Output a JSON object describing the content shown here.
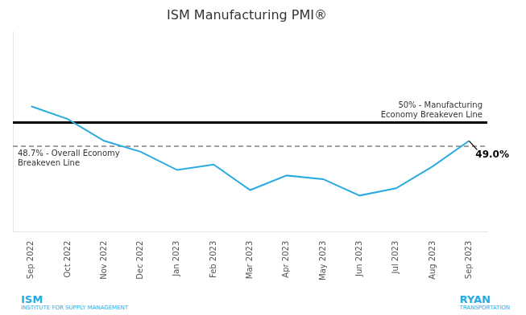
{
  "chart_data": {
    "type": "line",
    "title": "ISM Manufacturing PMI®",
    "categories": [
      "Sep 2022",
      "Oct 2022",
      "Nov 2022",
      "Dec 2022",
      "Jan 2023",
      "Feb 2023",
      "Mar 2023",
      "Apr 2023",
      "May 2023",
      "Jun 2023",
      "Jul 2023",
      "Aug 2023",
      "Sep 2023"
    ],
    "values": [
      50.9,
      50.2,
      49.0,
      48.4,
      47.4,
      47.7,
      46.3,
      47.1,
      46.9,
      46.0,
      46.4,
      47.6,
      49.0
    ],
    "color": "#29ABE2",
    "ylim": [
      44.0,
      55.0
    ],
    "yticks": [],
    "tick_labels": "x",
    "grid": false,
    "reference_lines": [
      {
        "value": 50.0,
        "label": "50% - Manufacturing\nEconomy Breakeven Line",
        "color": "#000000",
        "line_style": "solid"
      },
      {
        "value": 48.7,
        "label": "48.7% - Overall Economy\nBreakeven Line",
        "color": "#808080",
        "line_style": "dashed"
      }
    ],
    "annotations": [
      {
        "text": "49.0%",
        "x": "Sep 2023",
        "y": 49.0
      }
    ],
    "logos": [
      {
        "text": "ISM",
        "subtext": "INSTITUTE FOR SUPPLY MANAGEMENT",
        "color": "#29ABE2"
      },
      {
        "text": "RYAN",
        "subtext": "TRANSPORTATION",
        "color": "#29ABE2"
      }
    ]
  }
}
